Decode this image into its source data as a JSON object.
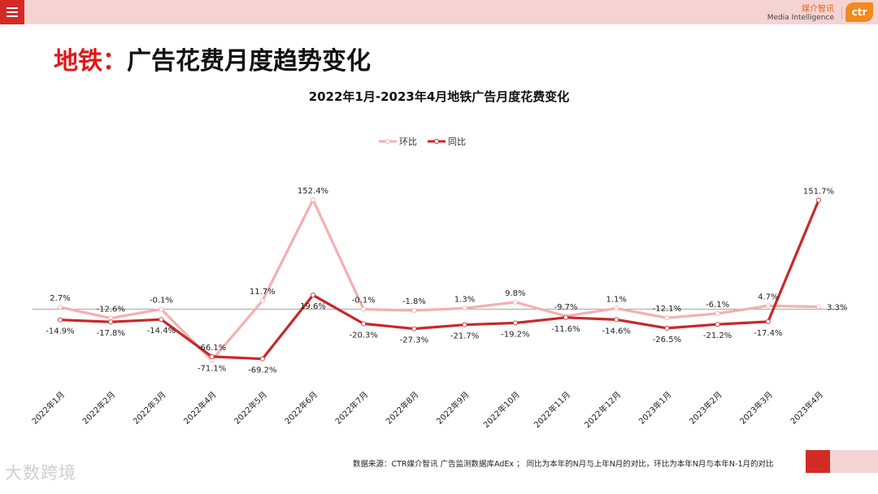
{
  "header": {
    "brand_cn": "媒介智讯",
    "brand_en": "Media Intelligence",
    "logo_text": "ctr"
  },
  "page": {
    "title_accent": "地铁：",
    "title_main": "广告花费月度趋势变化"
  },
  "footer": {
    "source": "数据来源：CTR媒介智讯 广告监测数据库AdEx ； 同比为本年的N月与上年N月的对比，环比为本年N月与本年N-1月的对比",
    "watermark": "大数跨境"
  },
  "colors": {
    "accent_red": "#d42a26",
    "band_pink": "#f5d3d3",
    "series_mom": "#f4b0b0",
    "series_yoy": "#c8282a"
  },
  "chart_data": {
    "type": "line",
    "title": "2022年1月-2023年4月地铁广告月度花费变化",
    "categories": [
      "2022年1月",
      "2022年2月",
      "2022年3月",
      "2022年4月",
      "2022年5月",
      "2022年6月",
      "2022年7月",
      "2022年8月",
      "2022年9月",
      "2022年10月",
      "2022年11月",
      "2022年12月",
      "2023年1月",
      "2023年2月",
      "2023年3月",
      "2023年4月"
    ],
    "series": [
      {
        "name": "环比",
        "values": [
          2.7,
          -12.6,
          -0.1,
          -71.1,
          11.7,
          152.4,
          -0.1,
          -1.8,
          1.3,
          9.8,
          -9.7,
          1.1,
          -12.1,
          -6.1,
          4.7,
          3.3
        ]
      },
      {
        "name": "同比",
        "values": [
          -14.9,
          -17.8,
          -14.4,
          -66.1,
          -69.2,
          19.6,
          -20.3,
          -27.3,
          -21.7,
          -19.2,
          -11.6,
          -14.6,
          -26.5,
          -21.2,
          -17.4,
          151.7
        ]
      }
    ],
    "data_labels": [
      [
        "2.7%",
        "-12.6%",
        "-0.1%",
        "-71.1%",
        "11.7%",
        "152.4%",
        "-0.1%",
        "-1.8%",
        "1.3%",
        "9.8%",
        "-9.7%",
        "1.1%",
        "-12.1%",
        "-6.1%",
        "4.7%",
        "3.3%"
      ],
      [
        "-14.9%",
        "-17.8%",
        "-14.4%",
        "-66.1%",
        "-69.2%",
        "19.6%",
        "-20.3%",
        "-27.3%",
        "-21.7%",
        "-19.2%",
        "-11.6%",
        "-14.6%",
        "-26.5%",
        "-21.2%",
        "-17.4%",
        "151.7%"
      ]
    ],
    "legend_position": "top-center",
    "grid": false,
    "baseline": 0
  }
}
